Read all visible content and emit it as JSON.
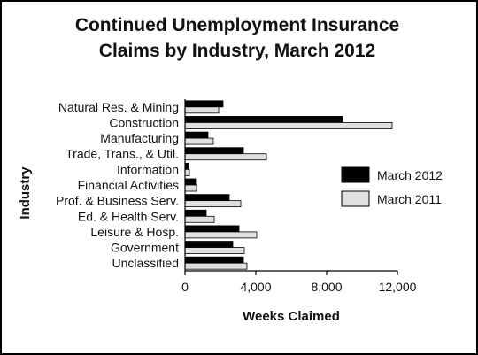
{
  "chart_data": {
    "type": "bar",
    "orientation": "horizontal",
    "title_line1": "Continued Unemployment Insurance",
    "title_line2": "Claims by Industry, March 2012",
    "xlabel": "Weeks Claimed",
    "ylabel": "Industry",
    "xlim": [
      0,
      12000
    ],
    "xticks": [
      0,
      4000,
      8000,
      12000
    ],
    "xtick_labels": [
      "0",
      "4,000",
      "8,000",
      "12,000"
    ],
    "categories": [
      "Natural Res. & Mining",
      "Construction",
      "Manufacturing",
      "Trade, Trans., & Util.",
      "Information",
      "Financial Activities",
      "Prof. & Business Serv.",
      "Ed. & Health Serv.",
      "Leisure & Hosp.",
      "Government",
      "Unclassified"
    ],
    "series": [
      {
        "name": "March 2012",
        "color": "#000000",
        "values": [
          2150,
          8900,
          1300,
          3300,
          200,
          600,
          2500,
          1200,
          3050,
          2700,
          3300
        ]
      },
      {
        "name": "March 2011",
        "color": "#e0e0e0",
        "values": [
          1900,
          11700,
          1600,
          4600,
          250,
          650,
          3150,
          1650,
          4050,
          3350,
          3500
        ]
      }
    ],
    "legend_position": "right",
    "grid": false
  }
}
